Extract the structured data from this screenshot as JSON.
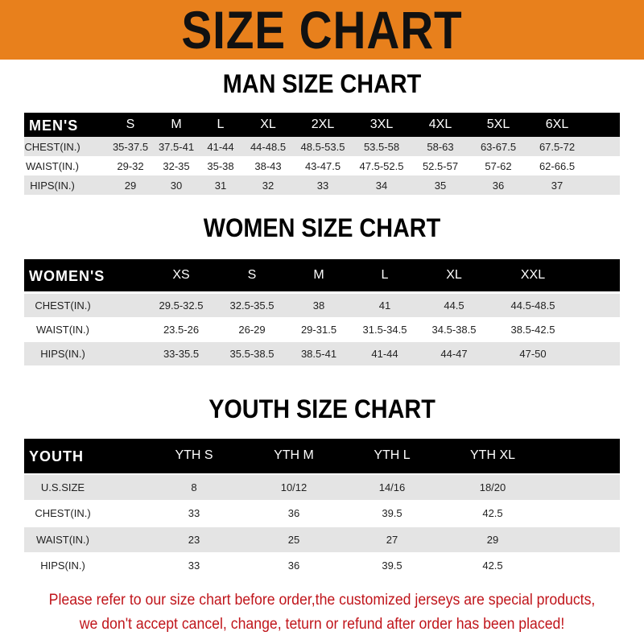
{
  "banner": {
    "title": "SIZE CHART"
  },
  "men": {
    "title": "MAN SIZE CHART",
    "header": [
      "MEN'S",
      "S",
      "M",
      "L",
      "XL",
      "2XL",
      "3XL",
      "4XL",
      "5XL",
      "6XL"
    ],
    "rows": [
      [
        "CHEST(IN.)",
        "35-37.5",
        "37.5-41",
        "41-44",
        "44-48.5",
        "48.5-53.5",
        "53.5-58",
        "58-63",
        "63-67.5",
        "67.5-72"
      ],
      [
        "WAIST(IN.)",
        "29-32",
        "32-35",
        "35-38",
        "38-43",
        "43-47.5",
        "47.5-52.5",
        "52.5-57",
        "57-62",
        "62-66.5"
      ],
      [
        "HIPS(IN.)",
        "29",
        "30",
        "31",
        "32",
        "33",
        "34",
        "35",
        "36",
        "37"
      ]
    ]
  },
  "women": {
    "title": "WOMEN SIZE CHART",
    "header": [
      "WOMEN'S",
      "XS",
      "S",
      "M",
      "L",
      "XL",
      "XXL"
    ],
    "rows": [
      [
        "CHEST(IN.)",
        "29.5-32.5",
        "32.5-35.5",
        "38",
        "41",
        "44.5",
        "44.5-48.5"
      ],
      [
        "WAIST(IN.)",
        "23.5-26",
        "26-29",
        "29-31.5",
        "31.5-34.5",
        "34.5-38.5",
        "38.5-42.5"
      ],
      [
        "HIPS(IN.)",
        "33-35.5",
        "35.5-38.5",
        "38.5-41",
        "41-44",
        "44-47",
        "47-50"
      ]
    ]
  },
  "youth": {
    "title": "YOUTH SIZE CHART",
    "header": [
      "YOUTH",
      "YTH S",
      "YTH M",
      "YTH L",
      "YTH XL"
    ],
    "rows": [
      [
        "U.S.SIZE",
        "8",
        "10/12",
        "14/16",
        "18/20"
      ],
      [
        "CHEST(IN.)",
        "33",
        "36",
        "39.5",
        "42.5"
      ],
      [
        "WAIST(IN.)",
        "23",
        "25",
        "27",
        "29"
      ],
      [
        "HIPS(IN.)",
        "33",
        "36",
        "39.5",
        "42.5"
      ]
    ]
  },
  "notice": {
    "line1": "Please refer to our size chart before order,the customized jerseys are special products,",
    "line2": "we don't accept cancel, change, teturn or refund after order has been placed!"
  },
  "colors": {
    "banner": "#e8801c",
    "header_row": "#000000",
    "stripe": "#e4e4e4",
    "notice": "#c0151b"
  }
}
